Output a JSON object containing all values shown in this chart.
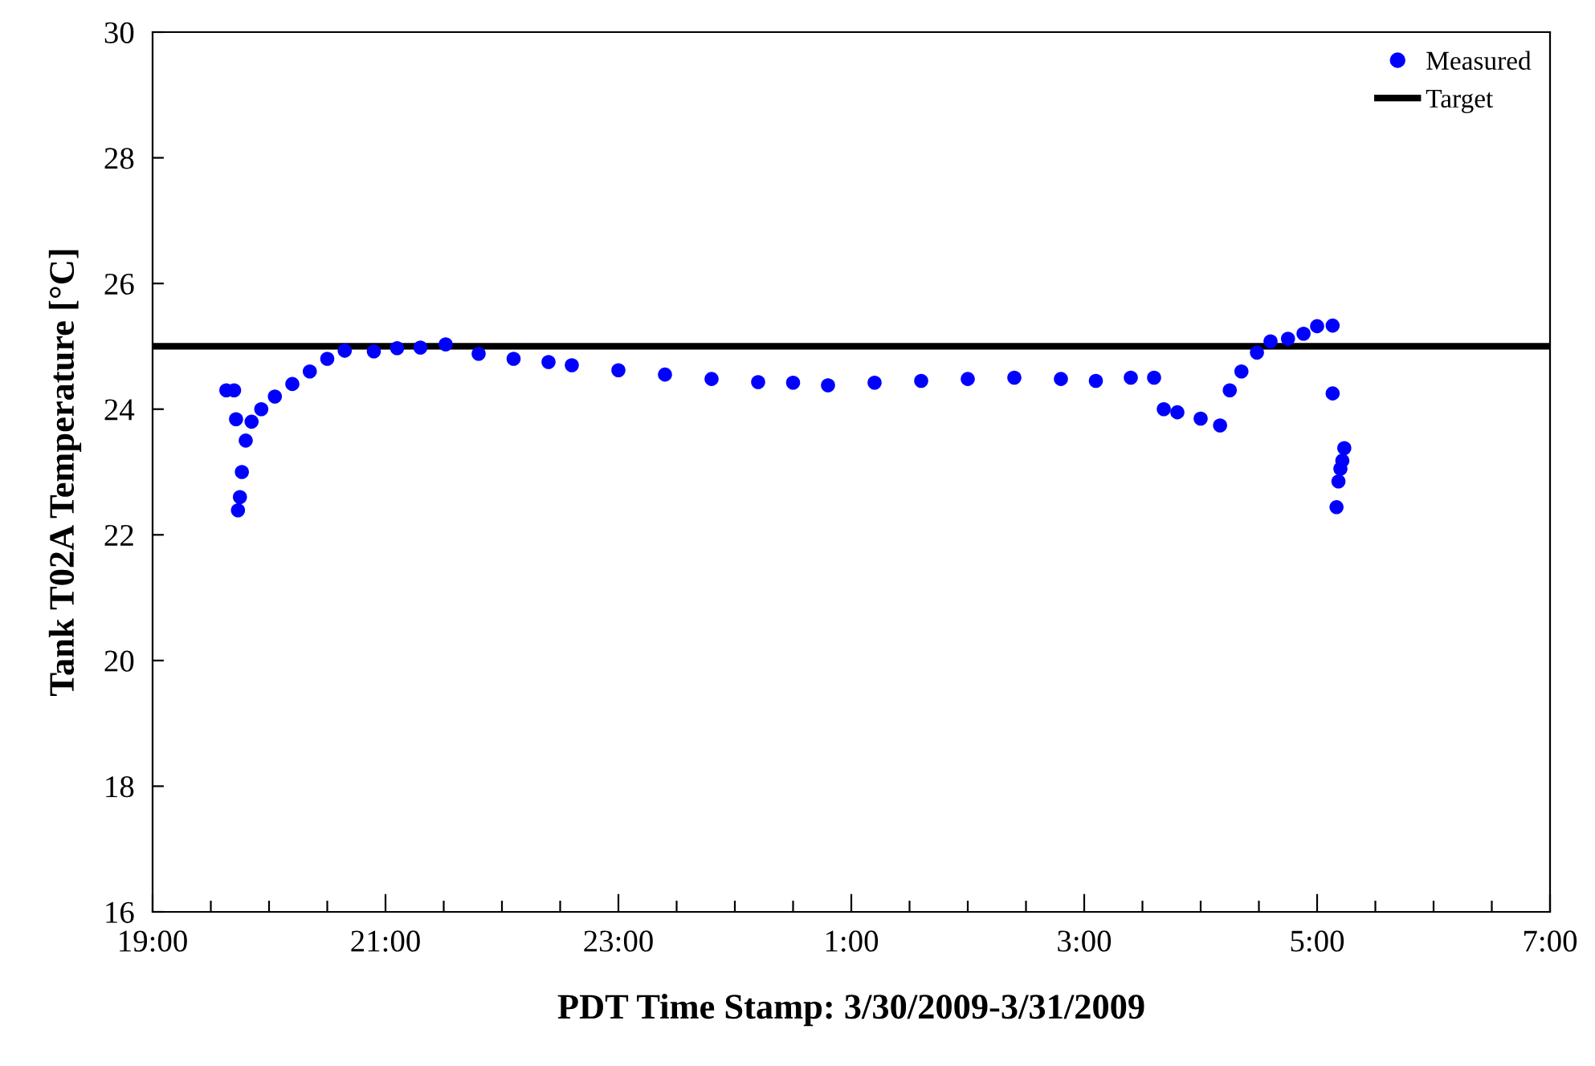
{
  "chart_data": {
    "type": "scatter",
    "xlabel": "PDT Time Stamp: 3/30/2009-3/31/2009",
    "ylabel": "Tank T02A Temperature [°C]",
    "series": [
      {
        "name": "Measured",
        "color": "#0000ff",
        "x": [
          "2009-03-30T19:38",
          "2009-03-30T19:42",
          "2009-03-30T19:43",
          "2009-03-30T19:44",
          "2009-03-30T19:45",
          "2009-03-30T19:46",
          "2009-03-30T19:48",
          "2009-03-30T19:51",
          "2009-03-30T19:56",
          "2009-03-30T20:03",
          "2009-03-30T20:12",
          "2009-03-30T20:21",
          "2009-03-30T20:30",
          "2009-03-30T20:39",
          "2009-03-30T20:54",
          "2009-03-30T21:06",
          "2009-03-30T21:18",
          "2009-03-30T21:31",
          "2009-03-30T21:48",
          "2009-03-30T22:06",
          "2009-03-30T22:24",
          "2009-03-30T22:36",
          "2009-03-30T23:00",
          "2009-03-30T23:24",
          "2009-03-30T23:48",
          "2009-03-31T00:12",
          "2009-03-31T00:30",
          "2009-03-31T00:48",
          "2009-03-31T01:12",
          "2009-03-31T01:36",
          "2009-03-31T02:00",
          "2009-03-31T02:24",
          "2009-03-31T02:48",
          "2009-03-31T03:06",
          "2009-03-31T03:24",
          "2009-03-31T03:36",
          "2009-03-31T03:41",
          "2009-03-31T03:48",
          "2009-03-31T04:00",
          "2009-03-31T04:10",
          "2009-03-31T04:15",
          "2009-03-31T04:21",
          "2009-03-31T04:29",
          "2009-03-31T04:36",
          "2009-03-31T04:45",
          "2009-03-31T04:53",
          "2009-03-31T05:00",
          "2009-03-31T05:08",
          "2009-03-31T05:08",
          "2009-03-31T05:10",
          "2009-03-31T05:11",
          "2009-03-31T05:12",
          "2009-03-31T05:13",
          "2009-03-31T05:14"
        ],
        "values": [
          24.3,
          24.3,
          23.84,
          22.39,
          22.6,
          23.0,
          23.5,
          23.8,
          24.0,
          24.2,
          24.4,
          24.6,
          24.8,
          24.93,
          24.92,
          24.97,
          24.98,
          25.03,
          24.88,
          24.8,
          24.75,
          24.7,
          24.62,
          24.55,
          24.48,
          24.43,
          24.42,
          24.38,
          24.42,
          24.45,
          24.48,
          24.5,
          24.48,
          24.45,
          24.5,
          24.5,
          24.0,
          23.95,
          23.85,
          23.74,
          24.3,
          24.6,
          24.9,
          25.08,
          25.12,
          25.2,
          25.32,
          25.33,
          24.25,
          22.44,
          22.85,
          23.05,
          23.18,
          23.38
        ]
      }
    ],
    "ref_lines": [
      {
        "axis": "y",
        "value": 25,
        "label": "Target",
        "color": "#000000",
        "line_style": "solid"
      }
    ],
    "marker": "circle",
    "legend": "top right",
    "grid": false,
    "xlim": [
      "2009-03-30T19:00",
      "2009-03-31T07:00"
    ],
    "ylim": [
      16,
      30
    ],
    "xticks": [
      {
        "value": "2009-03-30T19:00",
        "label": "19:00"
      },
      {
        "value": "2009-03-30T19:30",
        "label": null
      },
      {
        "value": "2009-03-30T20:00",
        "label": null
      },
      {
        "value": "2009-03-30T20:30",
        "label": null
      },
      {
        "value": "2009-03-30T21:00",
        "label": "21:00"
      },
      {
        "value": "2009-03-30T21:30",
        "label": null
      },
      {
        "value": "2009-03-30T22:00",
        "label": null
      },
      {
        "value": "2009-03-30T22:30",
        "label": null
      },
      {
        "value": "2009-03-30T23:00",
        "label": "23:00"
      },
      {
        "value": "2009-03-30T23:30",
        "label": null
      },
      {
        "value": "2009-03-31T00:00",
        "label": null
      },
      {
        "value": "2009-03-31T00:30",
        "label": null
      },
      {
        "value": "2009-03-31T01:00",
        "label": "1:00"
      },
      {
        "value": "2009-03-31T01:30",
        "label": null
      },
      {
        "value": "2009-03-31T02:00",
        "label": null
      },
      {
        "value": "2009-03-31T02:30",
        "label": null
      },
      {
        "value": "2009-03-31T03:00",
        "label": "3:00"
      },
      {
        "value": "2009-03-31T03:30",
        "label": null
      },
      {
        "value": "2009-03-31T04:00",
        "label": null
      },
      {
        "value": "2009-03-31T04:30",
        "label": null
      },
      {
        "value": "2009-03-31T05:00",
        "label": "5:00"
      },
      {
        "value": "2009-03-31T05:30",
        "label": null
      },
      {
        "value": "2009-03-31T06:00",
        "label": null
      },
      {
        "value": "2009-03-31T06:30",
        "label": null
      },
      {
        "value": "2009-03-31T07:00",
        "label": "7:00"
      }
    ],
    "yticks": [
      16,
      18,
      20,
      22,
      24,
      26,
      28,
      30
    ]
  }
}
